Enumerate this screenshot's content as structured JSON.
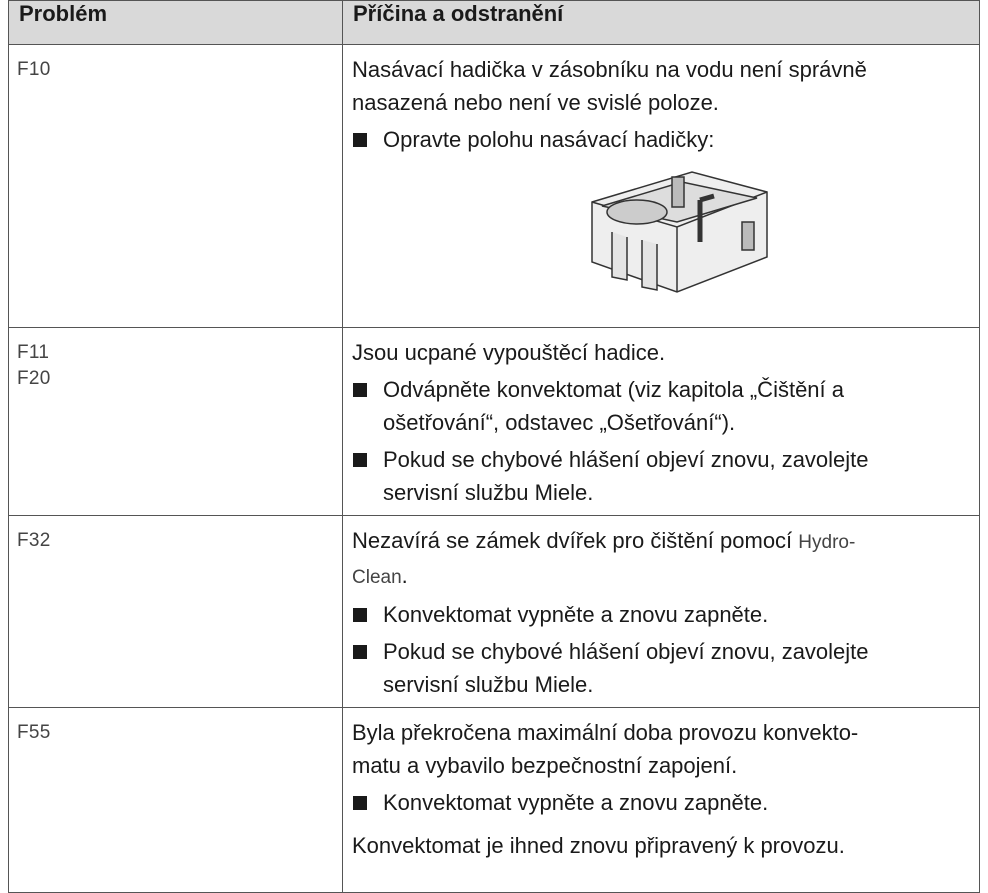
{
  "table": {
    "header": [
      "Problém",
      "Příčina a odstranění"
    ],
    "rows": [
      {
        "problem": [
          "F10"
        ],
        "cause": [
          {
            "lines": [
              "Nasávací hadička v zásobníku na vodu není správně",
              "nasazená nebo není ve svislé poloze."
            ]
          },
          {
            "bullet": [
              "Opravte polohu nasávací hadičky:"
            ]
          }
        ]
      },
      {
        "problem": [
          "F11",
          "F20"
        ],
        "cause": [
          {
            "lines": [
              "Jsou ucpané vypouštěcí hadice."
            ]
          },
          {
            "bullet": [
              "Odvápněte konvektomat (viz kapitola „Čištění a",
              "ošetřování“, odstavec „Ošetřování“)."
            ]
          },
          {
            "bullet": [
              "Pokud se chybové hlášení objeví znovu, zavolejte",
              "servisní službu Miele."
            ]
          }
        ]
      },
      {
        "problem": [
          "F32"
        ],
        "cause": [
          {
            "text": "Nezavírá se zámek dvířek pro čištění pomocí",
            "term": [
              "Hydro-",
              "Clean"
            ],
            "tail": "."
          },
          {
            "bullet": [
              "Konvektomat vypněte a znovu zapněte."
            ]
          },
          {
            "bullet": [
              "Pokud se chybové hlášení objeví znovu, zavolejte",
              "servisní službu Miele."
            ]
          }
        ]
      },
      {
        "problem": [
          "F55"
        ],
        "cause": [
          {
            "lines": [
              "Byla překročena maximální doba provozu konvekto-",
              "matu a vybavilo bezpečnostní zapojení."
            ]
          },
          {
            "bullet": [
              "Konvektomat vypněte a znovu zapněte."
            ]
          },
          {
            "final": [
              "Konvektomat je ihned znovu připravený k provozu."
            ]
          }
        ]
      }
    ]
  }
}
